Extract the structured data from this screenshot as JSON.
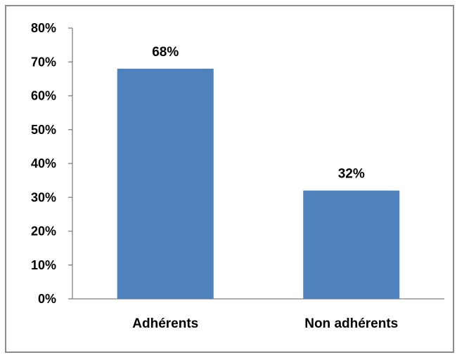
{
  "chart_data": {
    "type": "bar",
    "categories": [
      "Adhérents",
      "Non adhérents"
    ],
    "values": [
      68,
      32
    ],
    "data_labels": [
      "68%",
      "32%"
    ],
    "title": "",
    "xlabel": "",
    "ylabel": "",
    "ylim": [
      0,
      80
    ],
    "yticks": [
      "0%",
      "10%",
      "20%",
      "30%",
      "40%",
      "50%",
      "60%",
      "70%",
      "80%"
    ],
    "grid": false,
    "legend": "none",
    "bar_color": "#4F81BD",
    "axis_color": "#808080"
  }
}
